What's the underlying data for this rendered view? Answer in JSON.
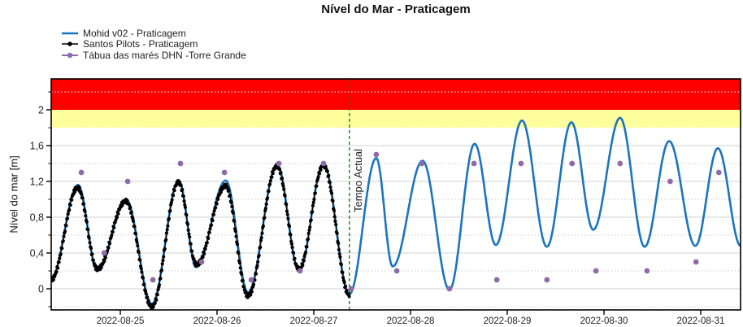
{
  "chart_data": {
    "type": "line",
    "title": "Nível do Mar - Praticagem",
    "ylabel": "Nível do mar [m]",
    "note": "Tide level time series; line/marker points listed are the high/low water extrema read from the plot, curve is sinusoidal between extrema",
    "y_axis": {
      "range": [
        -0.24,
        2.35
      ],
      "major_ticks": [
        {
          "value": 0,
          "label": "0"
        },
        {
          "value": 0.4,
          "label": "0,4"
        },
        {
          "value": 0.8,
          "label": "0,8"
        },
        {
          "value": 1.2,
          "label": "1,2"
        },
        {
          "value": 1.6,
          "label": "1,6"
        },
        {
          "value": 2,
          "label": "2"
        }
      ],
      "minor_tick_values": [
        -0.2,
        0.2,
        0.6,
        1.0,
        1.4,
        1.8,
        2.2
      ]
    },
    "x_axis": {
      "range": [
        "2022-08-24 06:50",
        "2022-08-31 09:55"
      ],
      "ticks": [
        {
          "time": "2022-08-25 00:00",
          "label": "2022-08-25"
        },
        {
          "time": "2022-08-26 00:00",
          "label": "2022-08-26"
        },
        {
          "time": "2022-08-27 00:00",
          "label": "2022-08-27"
        },
        {
          "time": "2022-08-28 00:00",
          "label": "2022-08-28"
        },
        {
          "time": "2022-08-29 00:00",
          "label": "2022-08-29"
        },
        {
          "time": "2022-08-30 00:00",
          "label": "2022-08-30"
        },
        {
          "time": "2022-08-31 00:00",
          "label": "2022-08-31"
        }
      ]
    },
    "reference_bands": [
      {
        "name": "alert-band",
        "color": "#FF0000",
        "from": 2.0,
        "to": 2.35
      },
      {
        "name": "warning-band",
        "color": "#FFFF9E",
        "from": 1.8,
        "to": 2.0
      }
    ],
    "current_time_marker": {
      "label": "Tempo Actual",
      "time": "2022-08-27 08:50",
      "color": "#007D00"
    },
    "grid": {
      "major_color": "#D2D2D2",
      "minor_color": "#C9C9C9",
      "minor_color_over_bands": "#FFFFFF"
    },
    "series": [
      {
        "name": "Mohid v02 - Praticagem",
        "kind": "smooth-line",
        "color": "#1B75BC",
        "points": [
          [
            "2022-08-24 06:50",
            0.12
          ],
          [
            "2022-08-24 13:30",
            1.16
          ],
          [
            "2022-08-24 18:20",
            0.2
          ],
          [
            "2022-08-25 01:25",
            1.0
          ],
          [
            "2022-08-25 07:50",
            -0.17
          ],
          [
            "2022-08-25 14:30",
            1.21
          ],
          [
            "2022-08-25 18:50",
            0.24
          ],
          [
            "2022-08-26 02:10",
            1.21
          ],
          [
            "2022-08-26 07:40",
            -0.04
          ],
          [
            "2022-08-26 14:55",
            1.39
          ],
          [
            "2022-08-26 20:20",
            0.2
          ],
          [
            "2022-08-27 02:25",
            1.4
          ],
          [
            "2022-08-27 08:50",
            -0.06
          ],
          [
            "2022-08-27 15:30",
            1.46
          ],
          [
            "2022-08-27 19:35",
            0.25
          ],
          [
            "2022-08-28 03:00",
            1.43
          ],
          [
            "2022-08-28 09:40",
            -0.01
          ],
          [
            "2022-08-28 15:55",
            1.62
          ],
          [
            "2022-08-28 21:10",
            0.49
          ],
          [
            "2022-08-29 03:40",
            1.88
          ],
          [
            "2022-08-29 09:50",
            0.47
          ],
          [
            "2022-08-29 15:55",
            1.86
          ],
          [
            "2022-08-29 21:20",
            0.66
          ],
          [
            "2022-08-30 04:00",
            1.91
          ],
          [
            "2022-08-30 10:05",
            0.47
          ],
          [
            "2022-08-30 16:10",
            1.65
          ],
          [
            "2022-08-30 22:40",
            0.48
          ],
          [
            "2022-08-31 04:15",
            1.57
          ],
          [
            "2022-08-31 09:55",
            0.48
          ]
        ]
      },
      {
        "name": "Santos Pilots - Praticagem",
        "kind": "dense-dotted-line",
        "color": "#000000",
        "points": [
          [
            "2022-08-24 06:50",
            0.1
          ],
          [
            "2022-08-24 13:25",
            1.13
          ],
          [
            "2022-08-24 18:20",
            0.22
          ],
          [
            "2022-08-25 01:20",
            0.98
          ],
          [
            "2022-08-25 07:50",
            -0.2
          ],
          [
            "2022-08-25 14:25",
            1.19
          ],
          [
            "2022-08-25 18:55",
            0.27
          ],
          [
            "2022-08-26 02:05",
            1.15
          ],
          [
            "2022-08-26 07:40",
            -0.08
          ],
          [
            "2022-08-26 14:50",
            1.37
          ],
          [
            "2022-08-26 20:20",
            0.22
          ],
          [
            "2022-08-27 02:25",
            1.38
          ],
          [
            "2022-08-27 08:50",
            -0.07
          ]
        ]
      },
      {
        "name": "Tábua das marés DHN -Torre Grande",
        "kind": "markers",
        "color": "#8E6CA9",
        "points": [
          [
            "2022-08-24 14:20",
            1.3
          ],
          [
            "2022-08-24 20:00",
            0.4
          ],
          [
            "2022-08-25 01:50",
            1.2
          ],
          [
            "2022-08-25 08:05",
            0.1
          ],
          [
            "2022-08-25 14:55",
            1.4
          ],
          [
            "2022-08-25 20:10",
            0.3
          ],
          [
            "2022-08-26 01:50",
            1.3
          ],
          [
            "2022-08-26 08:30",
            0.1
          ],
          [
            "2022-08-26 15:20",
            1.4
          ],
          [
            "2022-08-26 20:35",
            0.2
          ],
          [
            "2022-08-27 02:25",
            1.4
          ],
          [
            "2022-08-27 09:15",
            0.0
          ],
          [
            "2022-08-27 15:30",
            1.5
          ],
          [
            "2022-08-27 20:35",
            0.2
          ],
          [
            "2022-08-28 02:50",
            1.4
          ],
          [
            "2022-08-28 09:40",
            0.0
          ],
          [
            "2022-08-28 15:45",
            1.4
          ],
          [
            "2022-08-28 21:25",
            0.1
          ],
          [
            "2022-08-29 03:25",
            1.4
          ],
          [
            "2022-08-29 09:50",
            0.1
          ],
          [
            "2022-08-29 16:05",
            1.4
          ],
          [
            "2022-08-29 22:00",
            0.2
          ],
          [
            "2022-08-30 04:00",
            1.4
          ],
          [
            "2022-08-30 10:40",
            0.2
          ],
          [
            "2022-08-30 16:25",
            1.2
          ],
          [
            "2022-08-30 22:50",
            0.3
          ],
          [
            "2022-08-31 04:30",
            1.3
          ]
        ]
      }
    ]
  }
}
